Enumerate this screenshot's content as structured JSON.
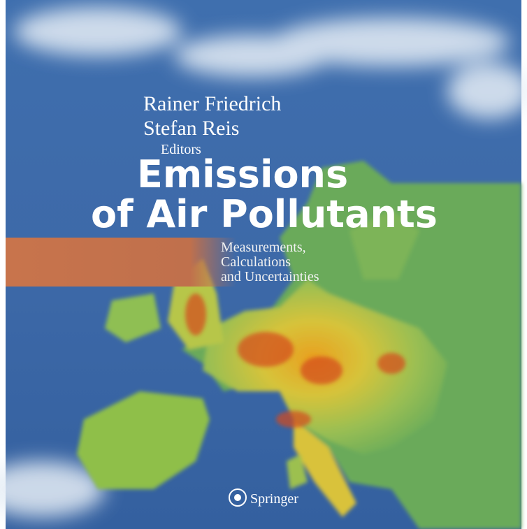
{
  "cover": {
    "authors": [
      "Rainer Friedrich",
      "Stefan Reis"
    ],
    "role": "Editors",
    "title": [
      "Emissions",
      "of Air Pollutants"
    ],
    "subtitle": [
      "Measurements,",
      "Calculations",
      "and Uncertainties"
    ],
    "publisher": "Springer"
  }
}
